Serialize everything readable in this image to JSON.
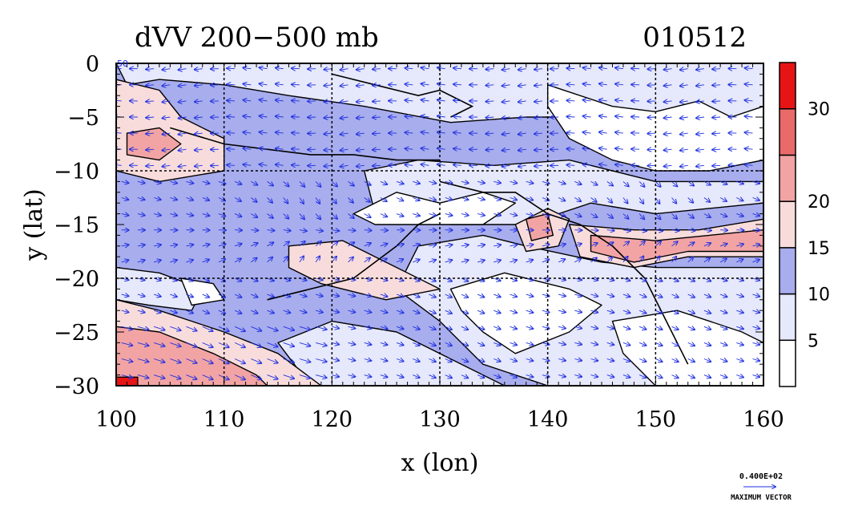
{
  "chart_data": {
    "type": "heatmap",
    "title": "dVV 200−500 mb",
    "date_label": "010512",
    "xlabel": "x (lon)",
    "ylabel": "y (lat)",
    "xlim": [
      100,
      160
    ],
    "ylim": [
      -30,
      0
    ],
    "x_ticks": [
      100,
      110,
      120,
      130,
      140,
      150,
      160
    ],
    "x_tick_labels": [
      "100",
      "110",
      "120",
      "130",
      "140",
      "150",
      "160"
    ],
    "y_ticks": [
      0,
      -5,
      -10,
      -15,
      -20,
      -25,
      -30
    ],
    "y_tick_labels": [
      "0",
      "−5",
      "−10",
      "−15",
      "−20",
      "−25",
      "−30"
    ],
    "grid": true,
    "grid_lines_x": [
      110,
      120,
      130,
      140,
      150
    ],
    "grid_lines_y": [
      -10,
      -20
    ],
    "colorbar": {
      "levels": [
        0,
        5,
        10,
        15,
        20,
        25,
        30,
        40
      ],
      "labels": [
        "5",
        "10",
        "15",
        "20",
        "30"
      ],
      "label_levels": [
        5,
        10,
        15,
        20,
        30
      ],
      "colors": [
        "#ffffff",
        "#e6e8fb",
        "#a8adee",
        "#f8dcdc",
        "#f2a4a4",
        "#ea6a6a",
        "#e61414"
      ]
    },
    "vector_legend": {
      "value": "0.400E+02",
      "label": "MAXIMUM VECTOR",
      "color": "#1f2fe0"
    },
    "vector_color": "#1f2fe0",
    "corner_label": "50"
  }
}
